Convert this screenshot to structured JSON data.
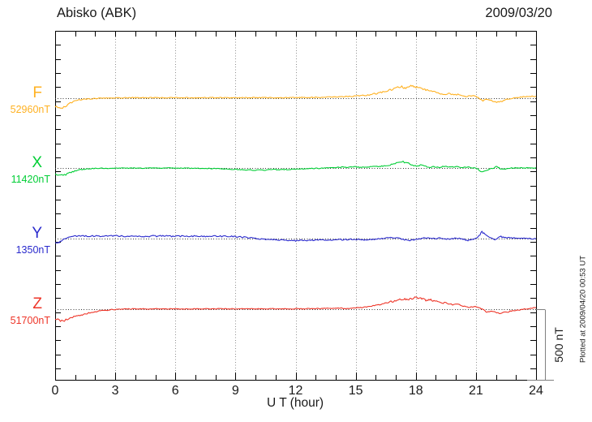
{
  "header": {
    "title": "Abisko (ABK)",
    "date": "2009/03/20"
  },
  "axes": {
    "xlabel": "U T (hour)",
    "x_range_hours": [
      0,
      24
    ],
    "x_tick_step_hours": 3,
    "x_minor_tick_hours": 1,
    "grid_hours": [
      3,
      6,
      9,
      12,
      15,
      18,
      21
    ],
    "y_minor_tick_nT": 100
  },
  "scale_bar": {
    "label": "500 nT",
    "span_nT": 500
  },
  "note": {
    "text": "Plotted at 2009/04/20 00:53 UT"
  },
  "style": {
    "axis_color": "#000000",
    "grid_color": "#8f8f8f",
    "baseline_color": "#383838",
    "scalebar_color": "#7f7f7f",
    "background": "#ffffff"
  },
  "chart_data": {
    "type": "line",
    "station": "Abisko (ABK)",
    "date": "2009/03/20",
    "xlabel": "U T (hour)",
    "x_unit": "hour",
    "x_range": [
      0,
      24
    ],
    "x_tick_labels": [
      "0",
      "3",
      "6",
      "9",
      "12",
      "15",
      "18",
      "21",
      "24"
    ],
    "x_tick_values": [
      0,
      3,
      6,
      9,
      12,
      15,
      18,
      21,
      24
    ],
    "y_scale_reference_nT": 500,
    "grid": "dotted vertical lines every 3 h; dotted horizontal baseline per trace",
    "series": [
      {
        "name": "F",
        "baseline_label": "52960nT",
        "baseline_nT": 52960,
        "color": "#FFB121",
        "noise_nT": 3,
        "points_hour_offsetnT": [
          [
            0,
            -60
          ],
          [
            0.15,
            -72
          ],
          [
            0.3,
            -75
          ],
          [
            0.5,
            -60
          ],
          [
            0.7,
            -42
          ],
          [
            0.9,
            -28
          ],
          [
            1.2,
            -16
          ],
          [
            1.5,
            -9
          ],
          [
            2,
            -5
          ],
          [
            2.5,
            -3
          ],
          [
            3,
            -1
          ],
          [
            3.5,
            0
          ],
          [
            4,
            1
          ],
          [
            5,
            0
          ],
          [
            6,
            1
          ],
          [
            7,
            0
          ],
          [
            8,
            1
          ],
          [
            9,
            0
          ],
          [
            10,
            1
          ],
          [
            11,
            1
          ],
          [
            12,
            2
          ],
          [
            12.5,
            3
          ],
          [
            13,
            3
          ],
          [
            13.5,
            4
          ],
          [
            14,
            6
          ],
          [
            14.5,
            8
          ],
          [
            15,
            12
          ],
          [
            15.3,
            15
          ],
          [
            15.6,
            20
          ],
          [
            16,
            30
          ],
          [
            16.3,
            40
          ],
          [
            16.6,
            50
          ],
          [
            16.9,
            62
          ],
          [
            17.1,
            72
          ],
          [
            17.3,
            78
          ],
          [
            17.45,
            70
          ],
          [
            17.6,
            74
          ],
          [
            17.75,
            88
          ],
          [
            17.9,
            84
          ],
          [
            18.05,
            74
          ],
          [
            18.2,
            66
          ],
          [
            18.35,
            60
          ],
          [
            18.5,
            58
          ],
          [
            18.7,
            52
          ],
          [
            18.9,
            46
          ],
          [
            19.1,
            36
          ],
          [
            19.3,
            28
          ],
          [
            19.5,
            25
          ],
          [
            19.7,
            30
          ],
          [
            19.9,
            20
          ],
          [
            20.1,
            24
          ],
          [
            20.3,
            12
          ],
          [
            20.5,
            8
          ],
          [
            20.7,
            14
          ],
          [
            20.9,
            16
          ],
          [
            21.05,
            6
          ],
          [
            21.2,
            -10
          ],
          [
            21.35,
            -20
          ],
          [
            21.5,
            -10
          ],
          [
            21.7,
            -14
          ],
          [
            21.9,
            -26
          ],
          [
            22.1,
            -32
          ],
          [
            22.3,
            -26
          ],
          [
            22.5,
            -14
          ],
          [
            22.7,
            -6
          ],
          [
            23,
            2
          ],
          [
            23.3,
            6
          ],
          [
            23.6,
            9
          ],
          [
            24,
            11
          ]
        ]
      },
      {
        "name": "X",
        "baseline_label": "11420nT",
        "baseline_nT": 11420,
        "color": "#00CE35",
        "noise_nT": 3,
        "points_hour_offsetnT": [
          [
            0,
            -40
          ],
          [
            0.2,
            -50
          ],
          [
            0.4,
            -52
          ],
          [
            0.6,
            -42
          ],
          [
            0.8,
            -28
          ],
          [
            1.1,
            -16
          ],
          [
            1.4,
            -8
          ],
          [
            1.8,
            -3
          ],
          [
            2.2,
            -1
          ],
          [
            3,
            0
          ],
          [
            4,
            1
          ],
          [
            5,
            0
          ],
          [
            6,
            1
          ],
          [
            7,
            -1
          ],
          [
            8,
            -3
          ],
          [
            8.5,
            -6
          ],
          [
            9,
            -9
          ],
          [
            9.5,
            -12
          ],
          [
            10,
            -14
          ],
          [
            10.5,
            -13
          ],
          [
            11,
            -11
          ],
          [
            11.5,
            -9
          ],
          [
            12,
            -7
          ],
          [
            12.5,
            -4
          ],
          [
            13,
            -2
          ],
          [
            13.5,
            1
          ],
          [
            14,
            4
          ],
          [
            14.3,
            8
          ],
          [
            14.6,
            5
          ],
          [
            15,
            9
          ],
          [
            15.3,
            6
          ],
          [
            15.6,
            9
          ],
          [
            16,
            11
          ],
          [
            16.3,
            14
          ],
          [
            16.6,
            20
          ],
          [
            16.9,
            30
          ],
          [
            17.1,
            40
          ],
          [
            17.3,
            48
          ],
          [
            17.5,
            40
          ],
          [
            17.7,
            30
          ],
          [
            17.9,
            20
          ],
          [
            18.1,
            14
          ],
          [
            18.3,
            26
          ],
          [
            18.5,
            12
          ],
          [
            18.7,
            7
          ],
          [
            18.9,
            11
          ],
          [
            19.1,
            6
          ],
          [
            19.4,
            12
          ],
          [
            19.7,
            7
          ],
          [
            20,
            11
          ],
          [
            20.3,
            5
          ],
          [
            20.6,
            9
          ],
          [
            20.9,
            2
          ],
          [
            21.1,
            -8
          ],
          [
            21.3,
            -30
          ],
          [
            21.5,
            -18
          ],
          [
            21.7,
            -6
          ],
          [
            21.9,
            2
          ],
          [
            22.05,
            14
          ],
          [
            22.2,
            -4
          ],
          [
            22.4,
            -8
          ],
          [
            22.6,
            -2
          ],
          [
            22.9,
            2
          ],
          [
            23.2,
            3
          ],
          [
            23.6,
            1
          ],
          [
            24,
            3
          ]
        ]
      },
      {
        "name": "Y",
        "baseline_label": "1350nT",
        "baseline_nT": 1350,
        "color": "#2A2ACD",
        "noise_nT": 4,
        "points_hour_offsetnT": [
          [
            0,
            -38
          ],
          [
            0.15,
            -30
          ],
          [
            0.3,
            -15
          ],
          [
            0.5,
            2
          ],
          [
            0.7,
            12
          ],
          [
            0.9,
            17
          ],
          [
            1.2,
            19
          ],
          [
            1.6,
            16
          ],
          [
            2,
            18
          ],
          [
            2.5,
            16
          ],
          [
            3,
            19
          ],
          [
            3.5,
            16
          ],
          [
            4,
            18
          ],
          [
            4.5,
            15
          ],
          [
            5,
            17
          ],
          [
            5.5,
            18
          ],
          [
            6,
            16
          ],
          [
            6.5,
            17
          ],
          [
            7,
            18
          ],
          [
            7.5,
            16
          ],
          [
            8,
            17
          ],
          [
            8.5,
            15
          ],
          [
            9,
            13
          ],
          [
            9.3,
            10
          ],
          [
            9.6,
            6
          ],
          [
            10,
            0
          ],
          [
            10.5,
            -6
          ],
          [
            11,
            -10
          ],
          [
            11.5,
            -13
          ],
          [
            12,
            -15
          ],
          [
            12.5,
            -13
          ],
          [
            13,
            -12
          ],
          [
            13.5,
            -10
          ],
          [
            14,
            -9
          ],
          [
            14.5,
            -7
          ],
          [
            15,
            -6
          ],
          [
            15.3,
            -9
          ],
          [
            15.6,
            -11
          ],
          [
            16,
            -5
          ],
          [
            16.3,
            0
          ],
          [
            16.6,
            4
          ],
          [
            16.9,
            7
          ],
          [
            17.1,
            3
          ],
          [
            17.3,
            -4
          ],
          [
            17.5,
            -12
          ],
          [
            17.7,
            -18
          ],
          [
            17.9,
            -10
          ],
          [
            18.1,
            -4
          ],
          [
            18.4,
            3
          ],
          [
            18.7,
            6
          ],
          [
            19,
            0
          ],
          [
            19.2,
            7
          ],
          [
            19.4,
            -2
          ],
          [
            19.7,
            -4
          ],
          [
            20,
            3
          ],
          [
            20.3,
            -2
          ],
          [
            20.6,
            -13
          ],
          [
            20.8,
            -8
          ],
          [
            21,
            2
          ],
          [
            21.15,
            20
          ],
          [
            21.3,
            46
          ],
          [
            21.45,
            30
          ],
          [
            21.6,
            12
          ],
          [
            21.8,
            2
          ],
          [
            21.95,
            -10
          ],
          [
            22.1,
            4
          ],
          [
            22.25,
            13
          ],
          [
            22.4,
            8
          ],
          [
            22.6,
            5
          ],
          [
            22.9,
            3
          ],
          [
            23.2,
            2
          ],
          [
            23.6,
            0
          ],
          [
            24,
            -3
          ]
        ]
      },
      {
        "name": "Z",
        "baseline_label": "51700nT",
        "baseline_nT": 51700,
        "color": "#EE3528",
        "noise_nT": 3,
        "points_hour_offsetnT": [
          [
            0,
            -72
          ],
          [
            0.2,
            -82
          ],
          [
            0.4,
            -86
          ],
          [
            0.6,
            -78
          ],
          [
            0.8,
            -66
          ],
          [
            1,
            -55
          ],
          [
            1.3,
            -42
          ],
          [
            1.6,
            -31
          ],
          [
            2,
            -20
          ],
          [
            2.4,
            -12
          ],
          [
            2.8,
            -6
          ],
          [
            3.2,
            -3
          ],
          [
            3.6,
            -1
          ],
          [
            4,
            0
          ],
          [
            5,
            0
          ],
          [
            6,
            -1
          ],
          [
            7,
            0
          ],
          [
            8,
            0
          ],
          [
            9,
            0
          ],
          [
            10,
            0
          ],
          [
            11,
            1
          ],
          [
            12,
            1
          ],
          [
            13,
            2
          ],
          [
            13.5,
            3
          ],
          [
            14,
            4
          ],
          [
            14.5,
            4
          ],
          [
            15,
            7
          ],
          [
            15.3,
            10
          ],
          [
            15.6,
            14
          ],
          [
            16,
            24
          ],
          [
            16.4,
            38
          ],
          [
            16.7,
            50
          ],
          [
            17,
            58
          ],
          [
            17.2,
            64
          ],
          [
            17.4,
            70
          ],
          [
            17.55,
            66
          ],
          [
            17.7,
            72
          ],
          [
            17.85,
            78
          ],
          [
            18,
            82
          ],
          [
            18.15,
            76
          ],
          [
            18.3,
            70
          ],
          [
            18.45,
            64
          ],
          [
            18.6,
            60
          ],
          [
            18.75,
            64
          ],
          [
            18.9,
            56
          ],
          [
            19.1,
            50
          ],
          [
            19.3,
            45
          ],
          [
            19.5,
            42
          ],
          [
            19.7,
            36
          ],
          [
            19.9,
            28
          ],
          [
            20.1,
            32
          ],
          [
            20.3,
            22
          ],
          [
            20.5,
            16
          ],
          [
            20.7,
            10
          ],
          [
            20.9,
            16
          ],
          [
            21.1,
            10
          ],
          [
            21.25,
            2
          ],
          [
            21.4,
            -10
          ],
          [
            21.55,
            -24
          ],
          [
            21.7,
            -16
          ],
          [
            21.9,
            -20
          ],
          [
            22.1,
            -30
          ],
          [
            22.3,
            -28
          ],
          [
            22.5,
            -24
          ],
          [
            22.7,
            -18
          ],
          [
            23,
            -10
          ],
          [
            23.3,
            -4
          ],
          [
            23.6,
            2
          ],
          [
            24,
            8
          ]
        ]
      }
    ]
  }
}
